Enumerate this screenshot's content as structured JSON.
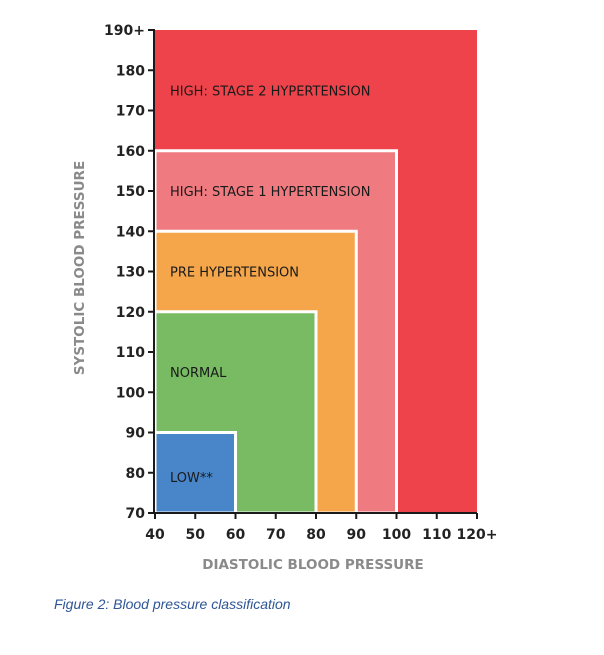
{
  "chart_data": {
    "type": "area",
    "title": "",
    "xlabel": "DIASTOLIC BLOOD PRESSURE",
    "ylabel": "SYSTOLIC BLOOD PRESSURE",
    "xlim": [
      40,
      120
    ],
    "ylim": [
      70,
      190
    ],
    "x_ticks": [
      {
        "value": 40,
        "label": "40"
      },
      {
        "value": 50,
        "label": "50"
      },
      {
        "value": 60,
        "label": "60"
      },
      {
        "value": 70,
        "label": "70"
      },
      {
        "value": 80,
        "label": "80"
      },
      {
        "value": 90,
        "label": "90"
      },
      {
        "value": 100,
        "label": "100"
      },
      {
        "value": 110,
        "label": "110"
      },
      {
        "value": 120,
        "label": "120+"
      }
    ],
    "y_ticks": [
      {
        "value": 70,
        "label": "70"
      },
      {
        "value": 80,
        "label": "80"
      },
      {
        "value": 90,
        "label": "90"
      },
      {
        "value": 100,
        "label": "100"
      },
      {
        "value": 110,
        "label": "110"
      },
      {
        "value": 120,
        "label": "120"
      },
      {
        "value": 130,
        "label": "130"
      },
      {
        "value": 140,
        "label": "140"
      },
      {
        "value": 150,
        "label": "150"
      },
      {
        "value": 160,
        "label": "160"
      },
      {
        "value": 170,
        "label": "170"
      },
      {
        "value": 180,
        "label": "180"
      },
      {
        "value": 190,
        "label": "190+"
      }
    ],
    "zones": [
      {
        "id": "stage2",
        "label": "HIGH: STAGE 2 HYPERTENSION",
        "diastolic_max": 120,
        "systolic_max": 190,
        "color": "#ee434b",
        "label_systolic": 175
      },
      {
        "id": "stage1",
        "label": "HIGH: STAGE 1 HYPERTENSION",
        "diastolic_max": 100,
        "systolic_max": 160,
        "color": "#ef7b80",
        "label_systolic": 150
      },
      {
        "id": "pre",
        "label": "PRE HYPERTENSION",
        "diastolic_max": 90,
        "systolic_max": 140,
        "color": "#f5a64a",
        "label_systolic": 130
      },
      {
        "id": "normal",
        "label": "NORMAL",
        "diastolic_max": 80,
        "systolic_max": 120,
        "color": "#78bb63",
        "label_systolic": 105
      },
      {
        "id": "low",
        "label": "LOW**",
        "diastolic_max": 60,
        "systolic_max": 90,
        "color": "#4886c9",
        "label_systolic": 79
      }
    ]
  },
  "caption": "Figure 2: Blood pressure classification"
}
